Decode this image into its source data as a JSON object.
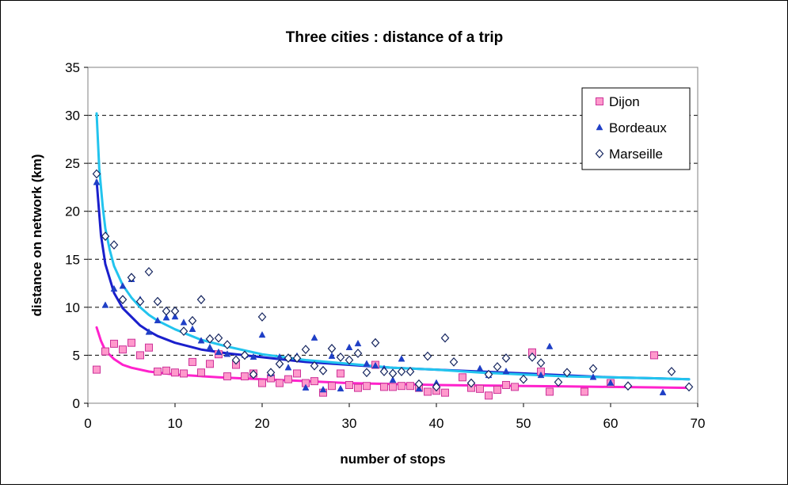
{
  "chart_data": {
    "type": "scatter",
    "title": "Three cities : distance of a trip",
    "xlabel": "number of stops",
    "ylabel": "distance on network (km)",
    "xlim": [
      0,
      70
    ],
    "ylim": [
      0,
      35
    ],
    "xticks": [
      0,
      10,
      20,
      30,
      40,
      50,
      60,
      70
    ],
    "yticks": [
      0,
      5,
      10,
      15,
      20,
      25,
      30,
      35
    ],
    "grid": "horizontal dashed",
    "legend_position": "top-right",
    "series": [
      {
        "name": "Dijon",
        "marker": "square",
        "color": "#ff99cc",
        "stroke": "#cc3399",
        "points": [
          [
            1,
            3.5
          ],
          [
            2,
            5.4
          ],
          [
            3,
            6.2
          ],
          [
            4,
            5.6
          ],
          [
            5,
            6.3
          ],
          [
            6,
            5.0
          ],
          [
            7,
            5.8
          ],
          [
            8,
            3.3
          ],
          [
            9,
            3.4
          ],
          [
            10,
            3.2
          ],
          [
            11,
            3.1
          ],
          [
            12,
            4.3
          ],
          [
            13,
            3.2
          ],
          [
            14,
            4.1
          ],
          [
            15,
            5.1
          ],
          [
            16,
            2.8
          ],
          [
            17,
            4.0
          ],
          [
            18,
            2.8
          ],
          [
            19,
            3.1
          ],
          [
            20,
            2.1
          ],
          [
            21,
            2.6
          ],
          [
            22,
            2.1
          ],
          [
            23,
            2.5
          ],
          [
            24,
            3.1
          ],
          [
            25,
            2.1
          ],
          [
            26,
            2.3
          ],
          [
            27,
            1.1
          ],
          [
            28,
            1.8
          ],
          [
            29,
            3.1
          ],
          [
            30,
            1.9
          ],
          [
            31,
            1.6
          ],
          [
            32,
            1.8
          ],
          [
            33,
            4.0
          ],
          [
            34,
            1.7
          ],
          [
            35,
            1.7
          ],
          [
            36,
            1.8
          ],
          [
            37,
            1.8
          ],
          [
            38,
            1.6
          ],
          [
            39,
            1.2
          ],
          [
            40,
            1.3
          ],
          [
            41,
            1.1
          ],
          [
            43,
            2.7
          ],
          [
            44,
            1.6
          ],
          [
            45,
            1.5
          ],
          [
            46,
            0.8
          ],
          [
            47,
            1.4
          ],
          [
            48,
            1.9
          ],
          [
            49,
            1.7
          ],
          [
            51,
            5.3
          ],
          [
            52,
            3.3
          ],
          [
            53,
            1.2
          ],
          [
            57,
            1.2
          ],
          [
            60,
            2.1
          ],
          [
            65,
            5.0
          ]
        ]
      },
      {
        "name": "Bordeaux",
        "marker": "triangle",
        "color": "#1f3fc6",
        "stroke": "#1f3fc6",
        "points": [
          [
            1,
            23.0
          ],
          [
            2,
            10.2
          ],
          [
            3,
            11.9
          ],
          [
            4,
            12.2
          ],
          [
            5,
            12.9
          ],
          [
            6,
            10.8
          ],
          [
            7,
            7.4
          ],
          [
            8,
            8.6
          ],
          [
            9,
            8.9
          ],
          [
            10,
            9.0
          ],
          [
            11,
            8.4
          ],
          [
            12,
            7.7
          ],
          [
            13,
            6.5
          ],
          [
            14,
            5.8
          ],
          [
            15,
            5.3
          ],
          [
            16,
            5.1
          ],
          [
            17,
            4.6
          ],
          [
            18,
            5.0
          ],
          [
            19,
            4.8
          ],
          [
            20,
            7.1
          ],
          [
            21,
            3.1
          ],
          [
            22,
            4.8
          ],
          [
            23,
            3.7
          ],
          [
            24,
            4.9
          ],
          [
            25,
            1.6
          ],
          [
            26,
            6.8
          ],
          [
            27,
            1.4
          ],
          [
            28,
            4.9
          ],
          [
            29,
            1.5
          ],
          [
            30,
            5.8
          ],
          [
            31,
            6.2
          ],
          [
            32,
            4.1
          ],
          [
            33,
            3.9
          ],
          [
            34,
            3.6
          ],
          [
            35,
            2.4
          ],
          [
            36,
            4.6
          ],
          [
            37,
            3.4
          ],
          [
            38,
            1.5
          ],
          [
            40,
            2.1
          ],
          [
            41,
            6.9
          ],
          [
            45,
            3.6
          ],
          [
            46,
            2.9
          ],
          [
            48,
            3.3
          ],
          [
            50,
            2.6
          ],
          [
            51,
            4.9
          ],
          [
            52,
            2.9
          ],
          [
            53,
            5.9
          ],
          [
            55,
            3.2
          ],
          [
            58,
            2.7
          ],
          [
            60,
            2.1
          ],
          [
            66,
            1.1
          ]
        ]
      },
      {
        "name": "Marseille",
        "marker": "diamond",
        "color": "#ffffff",
        "stroke": "#14245e",
        "points": [
          [
            1,
            23.9
          ],
          [
            2,
            17.4
          ],
          [
            3,
            16.5
          ],
          [
            4,
            10.8
          ],
          [
            5,
            13.1
          ],
          [
            6,
            10.6
          ],
          [
            7,
            13.7
          ],
          [
            8,
            10.6
          ],
          [
            9,
            9.6
          ],
          [
            10,
            9.6
          ],
          [
            11,
            7.5
          ],
          [
            12,
            8.6
          ],
          [
            13,
            10.8
          ],
          [
            14,
            6.7
          ],
          [
            15,
            6.8
          ],
          [
            16,
            6.1
          ],
          [
            17,
            4.5
          ],
          [
            18,
            5.0
          ],
          [
            19,
            3.0
          ],
          [
            20,
            9.0
          ],
          [
            21,
            3.2
          ],
          [
            22,
            4.1
          ],
          [
            23,
            4.7
          ],
          [
            24,
            4.7
          ],
          [
            25,
            5.6
          ],
          [
            26,
            3.9
          ],
          [
            27,
            3.4
          ],
          [
            28,
            5.7
          ],
          [
            29,
            4.8
          ],
          [
            30,
            4.5
          ],
          [
            31,
            5.2
          ],
          [
            32,
            3.2
          ],
          [
            33,
            6.3
          ],
          [
            34,
            3.3
          ],
          [
            35,
            3.1
          ],
          [
            36,
            3.3
          ],
          [
            37,
            3.3
          ],
          [
            38,
            2.0
          ],
          [
            39,
            4.9
          ],
          [
            40,
            1.7
          ],
          [
            41,
            6.8
          ],
          [
            42,
            4.3
          ],
          [
            44,
            2.1
          ],
          [
            46,
            3.0
          ],
          [
            47,
            3.8
          ],
          [
            48,
            4.7
          ],
          [
            50,
            2.5
          ],
          [
            51,
            4.8
          ],
          [
            52,
            4.2
          ],
          [
            54,
            2.2
          ],
          [
            55,
            3.2
          ],
          [
            58,
            3.6
          ],
          [
            62,
            1.8
          ],
          [
            67,
            3.3
          ],
          [
            69,
            1.7
          ]
        ]
      }
    ],
    "trendlines": [
      {
        "series": "Dijon",
        "color": "#ff22cc",
        "points": [
          [
            1,
            7.9
          ],
          [
            1.5,
            6.5
          ],
          [
            2,
            5.5
          ],
          [
            3,
            4.6
          ],
          [
            4,
            4.0
          ],
          [
            5,
            3.7
          ],
          [
            7,
            3.3
          ],
          [
            10,
            3.0
          ],
          [
            15,
            2.7
          ],
          [
            20,
            2.5
          ],
          [
            25,
            2.3
          ],
          [
            30,
            2.1
          ],
          [
            35,
            2.0
          ],
          [
            40,
            1.9
          ],
          [
            45,
            1.85
          ],
          [
            50,
            1.8
          ],
          [
            55,
            1.75
          ],
          [
            60,
            1.7
          ],
          [
            65,
            1.65
          ],
          [
            69,
            1.6
          ]
        ]
      },
      {
        "series": "Bordeaux",
        "color": "#1a1fcc",
        "points": [
          [
            1,
            23.2
          ],
          [
            1.5,
            17.5
          ],
          [
            2,
            14.5
          ],
          [
            3,
            11.5
          ],
          [
            4,
            9.9
          ],
          [
            5,
            9.0
          ],
          [
            6,
            8.1
          ],
          [
            7,
            7.5
          ],
          [
            8,
            7.0
          ],
          [
            10,
            6.3
          ],
          [
            13,
            5.6
          ],
          [
            16,
            5.2
          ],
          [
            20,
            4.8
          ],
          [
            25,
            4.3
          ],
          [
            30,
            4.0
          ],
          [
            35,
            3.7
          ],
          [
            40,
            3.5
          ],
          [
            45,
            3.3
          ],
          [
            50,
            3.1
          ],
          [
            55,
            2.9
          ],
          [
            60,
            2.7
          ],
          [
            65,
            2.6
          ],
          [
            69,
            2.5
          ]
        ]
      },
      {
        "series": "Marseille",
        "color": "#22c4ee",
        "points": [
          [
            1,
            30.2
          ],
          [
            1.3,
            24.5
          ],
          [
            1.7,
            20.5
          ],
          [
            2,
            18.2
          ],
          [
            2.5,
            16.0
          ],
          [
            3,
            14.3
          ],
          [
            4,
            12.3
          ],
          [
            5,
            11.0
          ],
          [
            6,
            10.0
          ],
          [
            7,
            9.2
          ],
          [
            8,
            8.6
          ],
          [
            10,
            7.7
          ],
          [
            13,
            6.6
          ],
          [
            16,
            5.9
          ],
          [
            20,
            5.1
          ],
          [
            25,
            4.5
          ],
          [
            30,
            4.1
          ],
          [
            35,
            3.7
          ],
          [
            40,
            3.5
          ],
          [
            45,
            3.2
          ],
          [
            50,
            3.0
          ],
          [
            55,
            2.8
          ],
          [
            60,
            2.7
          ],
          [
            65,
            2.6
          ],
          [
            69,
            2.5
          ]
        ]
      }
    ]
  }
}
